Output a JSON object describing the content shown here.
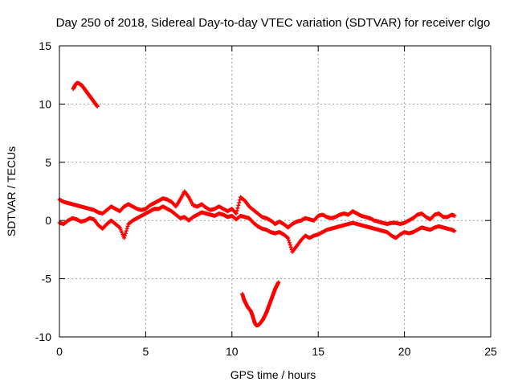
{
  "chart_data": {
    "type": "scatter",
    "title": "Day 250 of 2018, Sidereal Day-to-day VTEC variation (SDTVAR) for receiver clgo",
    "xlabel": "GPS time / hours",
    "ylabel": "SDTVAR / TECUs",
    "xlim": [
      0,
      25
    ],
    "ylim": [
      -10,
      15
    ],
    "xticks": [
      0,
      5,
      10,
      15,
      20,
      25
    ],
    "yticks": [
      -10,
      -5,
      0,
      5,
      10,
      15
    ],
    "grid": true,
    "marker": "+",
    "color": "#ff0000",
    "series": [
      {
        "name": "high arc",
        "x": [
          0.8,
          0.9,
          1.0,
          1.1,
          1.2,
          1.3,
          1.4,
          1.5,
          1.6,
          1.7,
          1.8,
          1.9,
          2.0,
          2.1,
          2.2
        ],
        "y": [
          11.3,
          11.6,
          11.8,
          11.8,
          11.7,
          11.6,
          11.4,
          11.2,
          11.0,
          10.8,
          10.6,
          10.4,
          10.2,
          10.0,
          9.8
        ]
      },
      {
        "name": "main trace upper",
        "x": [
          0.0,
          0.25,
          0.5,
          0.75,
          1.0,
          1.25,
          1.5,
          1.75,
          2.0,
          2.25,
          2.5,
          2.75,
          3.0,
          3.25,
          3.5,
          3.75,
          4.0,
          4.25,
          4.5,
          4.75,
          5.0,
          5.25,
          5.5,
          5.75,
          6.0,
          6.25,
          6.5,
          6.75,
          7.0,
          7.25,
          7.5,
          7.75,
          8.0,
          8.25,
          8.5,
          8.75,
          9.0,
          9.25,
          9.5,
          9.75,
          10.0,
          10.25,
          10.5,
          10.75,
          11.0,
          11.25,
          11.5,
          11.75,
          12.0,
          12.25,
          12.5,
          12.75,
          13.0,
          13.25,
          13.5,
          13.75,
          14.0,
          14.25,
          14.5,
          14.75,
          15.0,
          15.25,
          15.5,
          15.75,
          16.0,
          16.25,
          16.5,
          16.75,
          17.0,
          17.25,
          17.5,
          17.75,
          18.0,
          18.25,
          18.5,
          18.75,
          19.0,
          19.25,
          19.5,
          19.75,
          20.0,
          20.25,
          20.5,
          20.75,
          21.0,
          21.25,
          21.5,
          21.75,
          22.0,
          22.25,
          22.5,
          22.75,
          22.9
        ],
        "y": [
          1.8,
          1.6,
          1.5,
          1.4,
          1.3,
          1.2,
          1.1,
          1.0,
          0.9,
          0.7,
          0.6,
          0.9,
          1.2,
          1.0,
          0.8,
          1.2,
          1.4,
          1.2,
          1.0,
          0.9,
          1.0,
          1.3,
          1.5,
          1.7,
          1.9,
          1.8,
          1.6,
          1.2,
          1.8,
          2.5,
          2.0,
          1.3,
          1.2,
          1.4,
          1.1,
          0.9,
          1.0,
          1.2,
          1.0,
          0.8,
          1.0,
          0.6,
          2.0,
          1.7,
          1.2,
          0.9,
          0.6,
          0.3,
          0.2,
          0.0,
          -0.3,
          -0.1,
          -0.3,
          -0.6,
          -0.3,
          -0.1,
          0.0,
          0.2,
          0.1,
          0.0,
          0.4,
          0.5,
          0.3,
          0.2,
          0.3,
          0.5,
          0.6,
          0.5,
          0.8,
          0.6,
          0.4,
          0.3,
          0.2,
          0.0,
          -0.1,
          -0.2,
          -0.3,
          -0.2,
          -0.2,
          -0.3,
          -0.2,
          0.0,
          0.2,
          0.5,
          0.6,
          0.3,
          0.1,
          0.5,
          0.6,
          0.3,
          0.3,
          0.5,
          0.4
        ]
      },
      {
        "name": "main trace lower",
        "x": [
          0.0,
          0.25,
          0.5,
          0.75,
          1.0,
          1.25,
          1.5,
          1.75,
          2.0,
          2.25,
          2.5,
          2.75,
          3.0,
          3.25,
          3.5,
          3.75,
          4.0,
          4.25,
          4.5,
          4.75,
          5.0,
          5.25,
          5.5,
          5.75,
          6.0,
          6.25,
          6.5,
          6.75,
          7.0,
          7.25,
          7.5,
          7.75,
          8.0,
          8.25,
          8.5,
          8.75,
          9.0,
          9.25,
          9.5,
          9.75,
          10.0,
          10.25,
          10.5,
          10.75,
          11.0,
          11.25,
          11.5,
          11.75,
          12.0,
          12.25,
          12.5,
          12.75,
          13.0,
          13.25,
          13.5,
          13.75,
          14.0,
          14.25,
          14.5,
          14.75,
          15.0,
          15.25,
          15.5,
          15.75,
          16.0,
          16.25,
          16.5,
          16.75,
          17.0,
          17.25,
          17.5,
          17.75,
          18.0,
          18.25,
          18.5,
          18.75,
          19.0,
          19.25,
          19.5,
          19.75,
          20.0,
          20.25,
          20.5,
          20.75,
          21.0,
          21.25,
          21.5,
          21.75,
          22.0,
          22.25,
          22.5,
          22.75,
          22.9
        ],
        "y": [
          -0.2,
          -0.3,
          0.0,
          0.2,
          0.1,
          -0.1,
          0.0,
          0.2,
          0.1,
          -0.4,
          -0.7,
          -0.3,
          0.0,
          -0.3,
          -0.6,
          -1.5,
          -0.3,
          0.0,
          0.2,
          0.4,
          0.6,
          0.8,
          1.0,
          1.0,
          1.2,
          1.0,
          0.8,
          0.5,
          0.2,
          0.3,
          0.0,
          0.3,
          0.5,
          0.7,
          0.6,
          0.5,
          0.4,
          0.6,
          0.5,
          0.3,
          0.4,
          0.1,
          0.4,
          0.3,
          0.2,
          -0.2,
          -0.5,
          -0.7,
          -0.8,
          -1.0,
          -1.1,
          -1.0,
          -1.2,
          -1.5,
          -2.7,
          -2.2,
          -1.7,
          -1.3,
          -1.5,
          -1.3,
          -1.2,
          -1.0,
          -0.8,
          -0.7,
          -0.6,
          -0.5,
          -0.4,
          -0.3,
          -0.2,
          -0.3,
          -0.4,
          -0.5,
          -0.6,
          -0.7,
          -0.8,
          -0.9,
          -1.0,
          -1.3,
          -1.5,
          -1.2,
          -1.0,
          -1.1,
          -1.0,
          -0.8,
          -0.6,
          -0.7,
          -0.8,
          -0.6,
          -0.5,
          -0.6,
          -0.7,
          -0.8,
          -0.9
        ]
      },
      {
        "name": "low arc",
        "x": [
          10.6,
          10.7,
          10.8,
          10.9,
          11.0,
          11.1,
          11.2,
          11.3,
          11.4,
          11.5,
          11.6,
          11.7,
          11.8,
          11.9,
          12.0,
          12.1,
          12.2,
          12.3,
          12.4,
          12.5,
          12.6,
          12.7
        ],
        "y": [
          -6.3,
          -6.8,
          -7.1,
          -7.4,
          -7.6,
          -7.8,
          -8.2,
          -8.7,
          -9.0,
          -9.0,
          -8.9,
          -8.7,
          -8.5,
          -8.2,
          -7.9,
          -7.5,
          -7.1,
          -6.7,
          -6.3,
          -5.9,
          -5.6,
          -5.3
        ]
      }
    ]
  }
}
